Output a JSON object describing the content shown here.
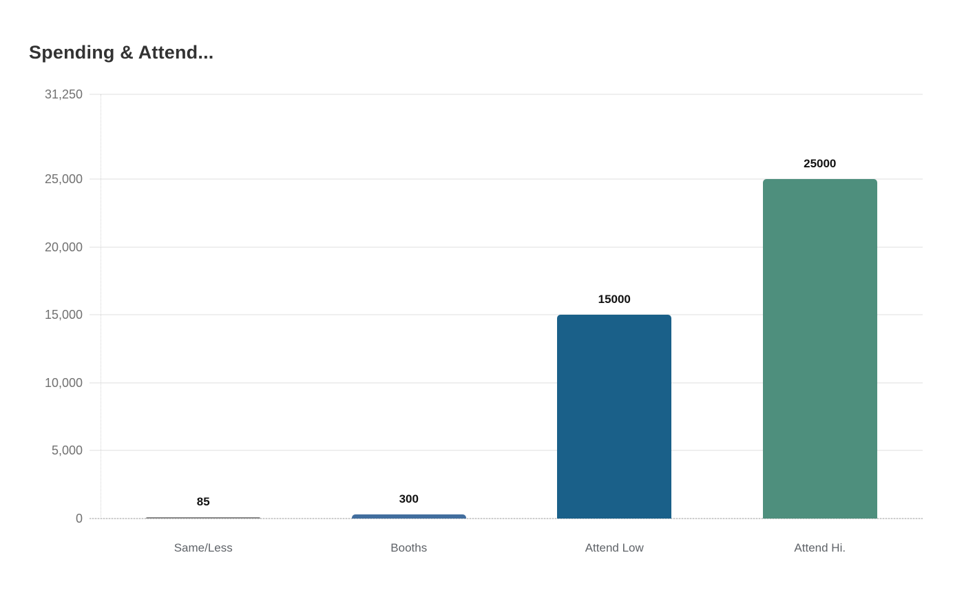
{
  "chart_data": {
    "type": "bar",
    "title": "Spending & Attend...",
    "xlabel": "",
    "ylabel": "",
    "categories": [
      "Same/Less",
      "Booths",
      "Attend Low",
      "Attend Hi."
    ],
    "values": [
      85,
      300,
      15000,
      25000
    ],
    "value_labels": [
      "85",
      "300",
      "15000",
      "25000"
    ],
    "bar_colors": [
      "#888888",
      "#426e9e",
      "#1a6089",
      "#4e8f7d"
    ],
    "ylim": [
      0,
      31250
    ],
    "yticks": [
      {
        "value": 31250,
        "label": "31,250"
      },
      {
        "value": 25000,
        "label": "25,000"
      },
      {
        "value": 20000,
        "label": "20,000"
      },
      {
        "value": 15000,
        "label": "15,000"
      },
      {
        "value": 10000,
        "label": "10,000"
      },
      {
        "value": 5000,
        "label": "5,000"
      },
      {
        "value": 0,
        "label": "0"
      }
    ],
    "grid": "horizontal",
    "legend": "none",
    "colors": {
      "background": "#ffffff",
      "title_text": "#333333",
      "axis_tick_text": "#717171",
      "category_text": "#5f6368",
      "data_label_text": "#111111",
      "gridline": "#efefef",
      "axis_line": "#cccccc"
    }
  }
}
